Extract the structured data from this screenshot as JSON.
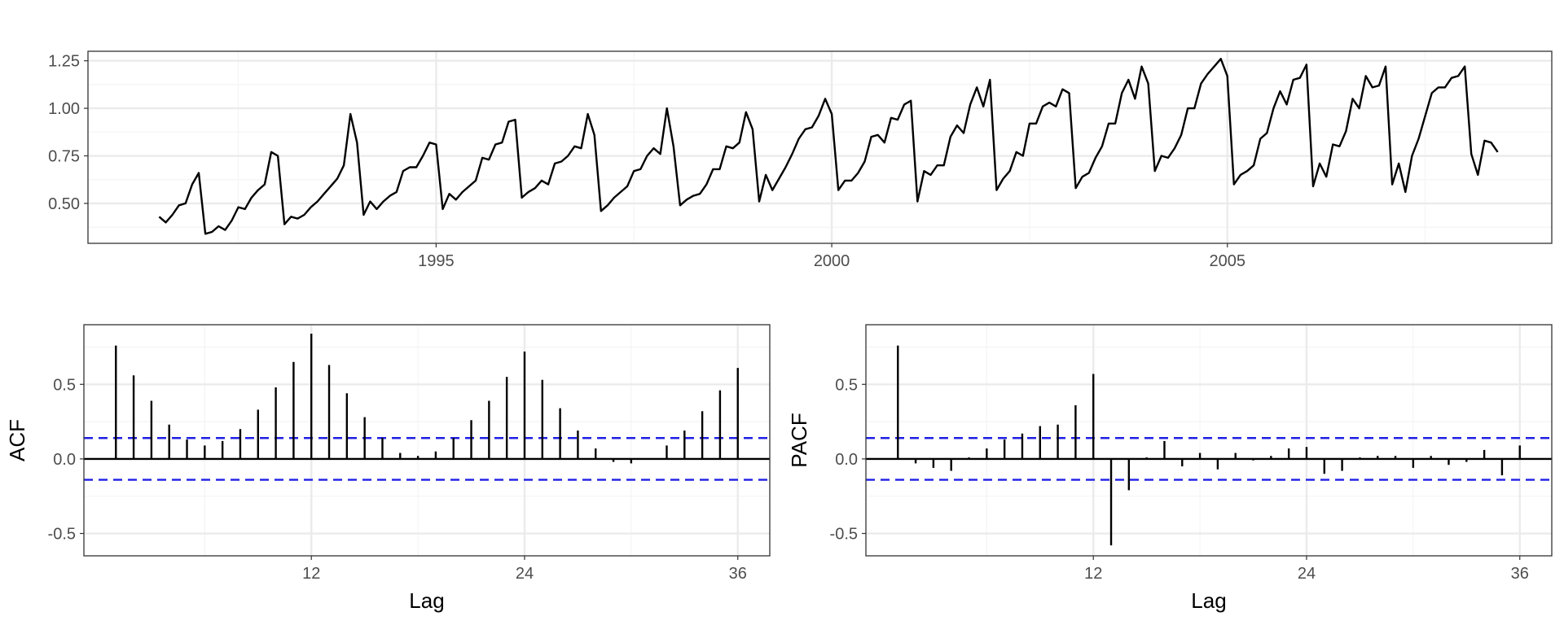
{
  "colors": {
    "line": "#000000",
    "ci": "#1f1fe6",
    "grid_major": "#ebebeb",
    "grid_minor": "#f4f4f4",
    "panel_border": "#333333"
  },
  "chart_data": [
    {
      "id": "ts",
      "type": "line",
      "xlabel": "",
      "ylabel": "",
      "xlim": [
        1990.6,
        2009.1
      ],
      "ylim": [
        0.29,
        1.3
      ],
      "x_ticks": [
        1995,
        2000,
        2005
      ],
      "x_tick_labels": [
        "1995",
        "2000",
        "2005"
      ],
      "y_ticks": [
        0.5,
        0.75,
        1.0,
        1.25
      ],
      "y_tick_labels": [
        "0.50",
        "0.75",
        "1.00",
        "1.25"
      ],
      "grid": true,
      "x_start": 1991.5,
      "x_step_months": 1,
      "values": [
        0.43,
        0.4,
        0.44,
        0.49,
        0.5,
        0.6,
        0.66,
        0.34,
        0.35,
        0.38,
        0.36,
        0.41,
        0.48,
        0.47,
        0.53,
        0.57,
        0.6,
        0.77,
        0.75,
        0.39,
        0.43,
        0.42,
        0.44,
        0.48,
        0.51,
        0.55,
        0.59,
        0.63,
        0.7,
        0.97,
        0.82,
        0.44,
        0.51,
        0.47,
        0.51,
        0.54,
        0.56,
        0.67,
        0.69,
        0.69,
        0.75,
        0.82,
        0.81,
        0.47,
        0.55,
        0.52,
        0.56,
        0.59,
        0.62,
        0.74,
        0.73,
        0.81,
        0.82,
        0.93,
        0.94,
        0.53,
        0.56,
        0.58,
        0.62,
        0.6,
        0.71,
        0.72,
        0.75,
        0.8,
        0.79,
        0.97,
        0.86,
        0.46,
        0.49,
        0.53,
        0.56,
        0.59,
        0.67,
        0.68,
        0.75,
        0.79,
        0.76,
        1.0,
        0.8,
        0.49,
        0.52,
        0.54,
        0.55,
        0.6,
        0.68,
        0.68,
        0.8,
        0.79,
        0.82,
        0.98,
        0.89,
        0.51,
        0.65,
        0.57,
        0.63,
        0.69,
        0.76,
        0.84,
        0.89,
        0.9,
        0.96,
        1.05,
        0.97,
        0.57,
        0.62,
        0.62,
        0.66,
        0.72,
        0.85,
        0.86,
        0.82,
        0.95,
        0.94,
        1.02,
        1.04,
        0.51,
        0.67,
        0.65,
        0.7,
        0.7,
        0.85,
        0.91,
        0.87,
        1.02,
        1.11,
        1.01,
        1.15,
        0.57,
        0.63,
        0.67,
        0.77,
        0.75,
        0.92,
        0.92,
        1.01,
        1.03,
        1.01,
        1.1,
        1.08,
        0.58,
        0.64,
        0.66,
        0.74,
        0.8,
        0.92,
        0.92,
        1.08,
        1.15,
        1.05,
        1.22,
        1.13,
        0.67,
        0.75,
        0.74,
        0.79,
        0.86,
        1.0,
        1.0,
        1.13,
        1.18,
        1.22,
        1.26,
        1.17,
        0.6,
        0.65,
        0.67,
        0.7,
        0.84,
        0.87,
        1.0,
        1.09,
        1.02,
        1.15,
        1.16,
        1.23,
        0.59,
        0.71,
        0.64,
        0.81,
        0.8,
        0.88,
        1.05,
        1.0,
        1.17,
        1.11,
        1.12,
        1.22,
        0.6,
        0.71,
        0.56,
        0.75,
        0.84,
        0.96,
        1.08,
        1.11,
        1.11,
        1.16,
        1.17,
        1.22,
        0.76,
        0.65,
        0.83,
        0.82,
        0.77
      ]
    },
    {
      "id": "acf",
      "type": "bar",
      "xlabel": "Lag",
      "ylabel": "ACF",
      "xlim": [
        -0.8,
        37.8
      ],
      "ylim": [
        -0.65,
        0.9
      ],
      "x_ticks": [
        12,
        24,
        36
      ],
      "x_tick_labels": [
        "12",
        "24",
        "36"
      ],
      "y_ticks": [
        -0.5,
        0.0,
        0.5
      ],
      "y_tick_labels": [
        "-0.5",
        "0.0",
        "0.5"
      ],
      "grid": true,
      "ci": 0.14,
      "lags": [
        1,
        2,
        3,
        4,
        5,
        6,
        7,
        8,
        9,
        10,
        11,
        12,
        13,
        14,
        15,
        16,
        17,
        18,
        19,
        20,
        21,
        22,
        23,
        24,
        25,
        26,
        27,
        28,
        29,
        30,
        31,
        32,
        33,
        34,
        35,
        36
      ],
      "values": [
        0.76,
        0.56,
        0.39,
        0.23,
        0.13,
        0.09,
        0.12,
        0.2,
        0.33,
        0.48,
        0.65,
        0.84,
        0.63,
        0.44,
        0.28,
        0.14,
        0.04,
        0.02,
        0.05,
        0.14,
        0.26,
        0.39,
        0.55,
        0.72,
        0.53,
        0.34,
        0.19,
        0.07,
        -0.02,
        -0.03,
        0.0,
        0.09,
        0.19,
        0.32,
        0.46,
        0.61
      ]
    },
    {
      "id": "pacf",
      "type": "bar",
      "xlabel": "Lag",
      "ylabel": "PACF",
      "xlim": [
        -0.8,
        37.8
      ],
      "ylim": [
        -0.65,
        0.9
      ],
      "x_ticks": [
        12,
        24,
        36
      ],
      "x_tick_labels": [
        "12",
        "24",
        "36"
      ],
      "y_ticks": [
        -0.5,
        0.0,
        0.5
      ],
      "y_tick_labels": [
        "-0.5",
        "0.0",
        "0.5"
      ],
      "grid": true,
      "ci": 0.14,
      "lags": [
        1,
        2,
        3,
        4,
        5,
        6,
        7,
        8,
        9,
        10,
        11,
        12,
        13,
        14,
        15,
        16,
        17,
        18,
        19,
        20,
        21,
        22,
        23,
        24,
        25,
        26,
        27,
        28,
        29,
        30,
        31,
        32,
        33,
        34,
        35,
        36
      ],
      "values": [
        0.76,
        -0.03,
        -0.06,
        -0.08,
        0.01,
        0.07,
        0.13,
        0.17,
        0.22,
        0.23,
        0.36,
        0.57,
        -0.58,
        -0.21,
        0.01,
        0.12,
        -0.05,
        0.04,
        -0.07,
        0.04,
        -0.01,
        0.02,
        0.07,
        0.08,
        -0.1,
        -0.08,
        0.01,
        0.02,
        0.02,
        -0.06,
        0.02,
        -0.04,
        -0.02,
        0.06,
        -0.11,
        0.09
      ]
    }
  ]
}
